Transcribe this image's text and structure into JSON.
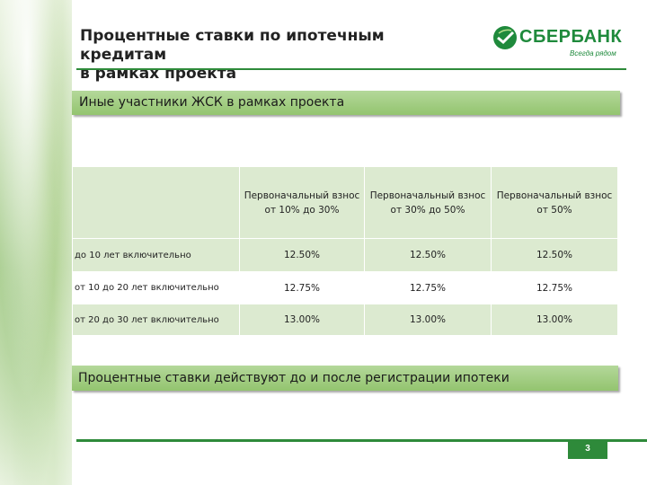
{
  "title": "Процентные ставки по ипотечным кредитам\nв рамках проекта",
  "logo": {
    "name": "СБЕРБАНК",
    "slogan": "Всегда рядом"
  },
  "section_title": "Иные участники ЖСК в рамках проекта",
  "table": {
    "headers": [
      "Первоначальный взнос от 10% до 30%",
      "Первоначальный взнос от 30% до 50%",
      "Первоначальный взнос от 50%"
    ],
    "rows": [
      {
        "label": "до 10 лет включительно",
        "values": [
          "12.50%",
          "12.50%",
          "12.50%"
        ]
      },
      {
        "label": "от 10 до 20 лет включительно",
        "values": [
          "12.75%",
          "12.75%",
          "12.75%"
        ]
      },
      {
        "label": "от 20 до 30 лет включительно",
        "values": [
          "13.00%",
          "13.00%",
          "13.00%"
        ]
      }
    ]
  },
  "footer_note": "Процентные ставки действуют до и после регистрации ипотеки",
  "page_number": "3",
  "colors": {
    "brand_green": "#2e8a3a",
    "bar_green": "#93c46f",
    "table_shade": "#dcead0"
  }
}
